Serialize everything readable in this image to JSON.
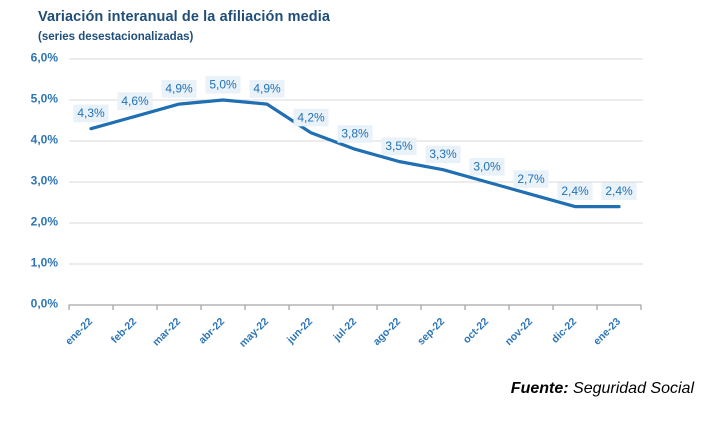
{
  "chart": {
    "title": "Variación interanual de la afiliación media",
    "subtitle": "(series desestacionalizadas)",
    "source": {
      "label": "Fuente:",
      "text": " Seguridad Social"
    }
  },
  "chart_data": {
    "type": "line",
    "title": "Variación interanual de la afiliación media",
    "subtitle": "(series desestacionalizadas)",
    "categories": [
      "ene-22",
      "feb-22",
      "mar-22",
      "abr-22",
      "may-22",
      "jun-22",
      "jul-22",
      "ago-22",
      "sep-22",
      "oct-22",
      "nov-22",
      "dic-22",
      "ene-23"
    ],
    "values": [
      4.3,
      4.6,
      4.9,
      5.0,
      4.9,
      4.2,
      3.8,
      3.5,
      3.3,
      3.0,
      2.7,
      2.4,
      2.4
    ],
    "data_labels": [
      "4,3%",
      "4,6%",
      "4,9%",
      "5,0%",
      "4,9%",
      "4,2%",
      "3,8%",
      "3,5%",
      "3,3%",
      "3,0%",
      "2,7%",
      "2,4%",
      "2,4%"
    ],
    "y_tick_labels": [
      "0,0%",
      "1,0%",
      "2,0%",
      "3,0%",
      "4,0%",
      "5,0%",
      "6,0%"
    ],
    "ylim": [
      0,
      6
    ],
    "y_step": 1,
    "grid": "horizontal",
    "legend": "none",
    "source": "Fuente: Seguridad Social",
    "colors": {
      "line": "#1f6fb2",
      "label_bg": "#e9f1f9",
      "label_text": "#2173b5",
      "axis_tick_text": "#2e75b6",
      "gridline": "#d9d9d9",
      "axis_line": "#a6a6a6",
      "title_text": "#1f4e79",
      "source_text": "#000000"
    }
  }
}
